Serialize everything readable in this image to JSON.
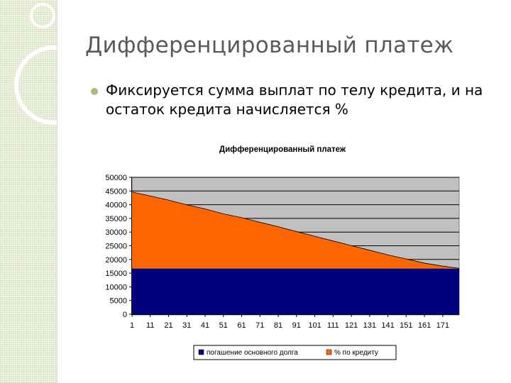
{
  "slide": {
    "title": "Дифференцированный платеж",
    "bullet": "Фиксируется сумма выплат по телу кредита, и на остаток кредита начисляется %"
  },
  "colors": {
    "principal": "#00007f",
    "interest": "#ff6600",
    "accent": "#a7bf7a"
  },
  "chart_data": {
    "type": "area",
    "stacked": true,
    "title": "Дифференцированный платеж",
    "xlabel": "",
    "ylabel": "",
    "ylim": [
      0,
      50000
    ],
    "yticks": [
      0,
      5000,
      10000,
      15000,
      20000,
      25000,
      30000,
      35000,
      40000,
      45000,
      50000
    ],
    "xticks": [
      1,
      11,
      21,
      31,
      41,
      51,
      61,
      71,
      81,
      91,
      101,
      111,
      121,
      131,
      141,
      151,
      161,
      171
    ],
    "x": [
      1,
      11,
      21,
      31,
      41,
      51,
      61,
      71,
      81,
      91,
      101,
      111,
      121,
      131,
      141,
      151,
      161,
      171,
      180
    ],
    "grid": true,
    "legend": "bottom",
    "series": [
      {
        "name": "погашение основного долга",
        "values": [
          16667,
          16667,
          16667,
          16667,
          16667,
          16667,
          16667,
          16667,
          16667,
          16667,
          16667,
          16667,
          16667,
          16667,
          16667,
          16667,
          16667,
          16667,
          16667
        ]
      },
      {
        "name": "% по кредиту",
        "values": [
          28000,
          26500,
          25000,
          23300,
          21800,
          20000,
          18600,
          16900,
          15300,
          13500,
          11800,
          10100,
          8400,
          6700,
          5000,
          3500,
          2000,
          900,
          100
        ]
      }
    ]
  }
}
